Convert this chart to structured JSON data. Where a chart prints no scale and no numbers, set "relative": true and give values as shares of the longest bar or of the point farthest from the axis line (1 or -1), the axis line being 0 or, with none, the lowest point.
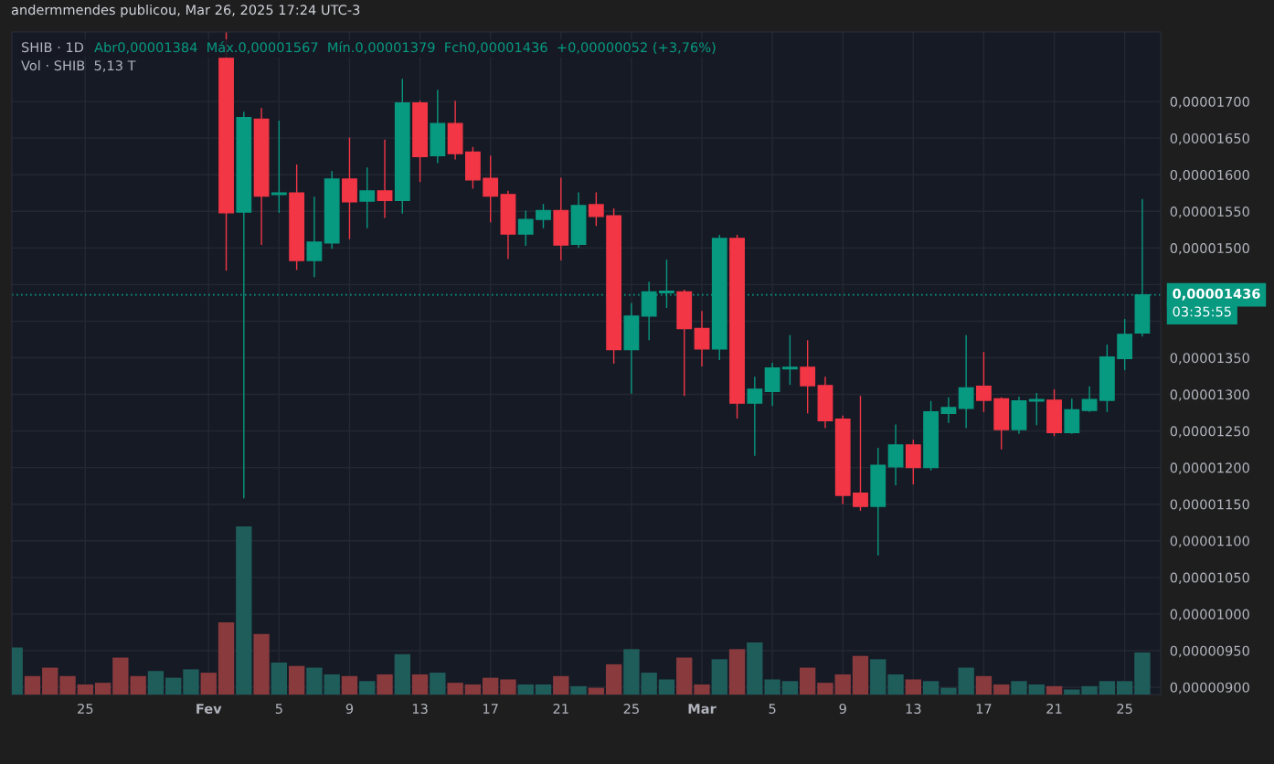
{
  "chart_data": [
    {
      "type": "candlestick",
      "title": "SHIB · 1D",
      "annotations": [
        "andermmendes publicou, Mar 26, 2025 17:24 UTC-3",
        "Abr0,00001384  Máx.0,00001567  Mín.0,00001379  Fch0,00001436  +0,00000052 (+3,76%)",
        "03:35:55"
      ],
      "x": [
        "2025-02-02",
        "2025-02-03",
        "2025-02-04",
        "2025-02-05",
        "2025-02-06",
        "2025-02-07",
        "2025-02-08",
        "2025-02-09",
        "2025-02-10",
        "2025-02-11",
        "2025-02-12",
        "2025-02-13",
        "2025-02-14",
        "2025-02-15",
        "2025-02-16",
        "2025-02-17",
        "2025-02-18",
        "2025-02-19",
        "2025-02-20",
        "2025-02-21",
        "2025-02-22",
        "2025-02-23",
        "2025-02-24",
        "2025-02-25",
        "2025-02-26",
        "2025-02-27",
        "2025-02-28",
        "2025-03-01",
        "2025-03-02",
        "2025-03-03",
        "2025-03-04",
        "2025-03-05",
        "2025-03-06",
        "2025-03-07",
        "2025-03-08",
        "2025-03-09",
        "2025-03-10",
        "2025-03-11",
        "2025-03-12",
        "2025-03-13",
        "2025-03-14",
        "2025-03-15",
        "2025-03-16",
        "2025-03-17",
        "2025-03-18",
        "2025-03-19",
        "2025-03-20",
        "2025-03-21",
        "2025-03-22",
        "2025-03-23",
        "2025-03-24",
        "2025-03-25",
        "2025-03-26"
      ],
      "ohlc": [
        [
          1.759e-05,
          1.795e-05,
          1.469e-05,
          1.548e-05
        ],
        [
          1.549e-05,
          1.686e-05,
          1.158e-05,
          1.678e-05
        ],
        [
          1.676e-05,
          1.691e-05,
          1.504e-05,
          1.571e-05
        ],
        [
          1.573e-05,
          1.674e-05,
          1.548e-05,
          1.575e-05
        ],
        [
          1.575e-05,
          1.614e-05,
          1.47e-05,
          1.483e-05
        ],
        [
          1.483e-05,
          1.57e-05,
          1.46e-05,
          1.508e-05
        ],
        [
          1.507e-05,
          1.605e-05,
          1.499e-05,
          1.594e-05
        ],
        [
          1.594e-05,
          1.651e-05,
          1.512e-05,
          1.563e-05
        ],
        [
          1.564e-05,
          1.61e-05,
          1.527e-05,
          1.578e-05
        ],
        [
          1.578e-05,
          1.648e-05,
          1.541e-05,
          1.565e-05
        ],
        [
          1.565e-05,
          1.731e-05,
          1.547e-05,
          1.698e-05
        ],
        [
          1.698e-05,
          1.701e-05,
          1.59e-05,
          1.625e-05
        ],
        [
          1.626e-05,
          1.716e-05,
          1.616e-05,
          1.67e-05
        ],
        [
          1.67e-05,
          1.701e-05,
          1.621e-05,
          1.629e-05
        ],
        [
          1.631e-05,
          1.638e-05,
          1.581e-05,
          1.593e-05
        ],
        [
          1.595e-05,
          1.626e-05,
          1.535e-05,
          1.571e-05
        ],
        [
          1.573e-05,
          1.578e-05,
          1.485e-05,
          1.519e-05
        ],
        [
          1.519e-05,
          1.551e-05,
          1.503e-05,
          1.539e-05
        ],
        [
          1.539e-05,
          1.56e-05,
          1.527e-05,
          1.551e-05
        ],
        [
          1.551e-05,
          1.596e-05,
          1.483e-05,
          1.504e-05
        ],
        [
          1.505e-05,
          1.576e-05,
          1.5e-05,
          1.558e-05
        ],
        [
          1.559e-05,
          1.576e-05,
          1.53e-05,
          1.543e-05
        ],
        [
          1.544e-05,
          1.554e-05,
          1.342e-05,
          1.361e-05
        ],
        [
          1.361e-05,
          1.425e-05,
          1.301e-05,
          1.407e-05
        ],
        [
          1.407e-05,
          1.454e-05,
          1.374e-05,
          1.44e-05
        ],
        [
          1.439e-05,
          1.484e-05,
          1.418e-05,
          1.441e-05
        ],
        [
          1.44e-05,
          1.443e-05,
          1.298e-05,
          1.39e-05
        ],
        [
          1.39e-05,
          1.414e-05,
          1.338e-05,
          1.362e-05
        ],
        [
          1.362e-05,
          1.518e-05,
          1.347e-05,
          1.513e-05
        ],
        [
          1.513e-05,
          1.518e-05,
          1.267e-05,
          1.288e-05
        ],
        [
          1.288e-05,
          1.324e-05,
          1.216e-05,
          1.307e-05
        ],
        [
          1.304e-05,
          1.343e-05,
          1.284e-05,
          1.336e-05
        ],
        [
          1.335e-05,
          1.381e-05,
          1.313e-05,
          1.337e-05
        ],
        [
          1.337e-05,
          1.374e-05,
          1.274e-05,
          1.312e-05
        ],
        [
          1.312e-05,
          1.324e-05,
          1.254e-05,
          1.264e-05
        ],
        [
          1.266e-05,
          1.271e-05,
          1.15e-05,
          1.162e-05
        ],
        [
          1.165e-05,
          1.298e-05,
          1.141e-05,
          1.147e-05
        ],
        [
          1.147e-05,
          1.227e-05,
          1.08e-05,
          1.203e-05
        ],
        [
          1.201e-05,
          1.259e-05,
          1.176e-05,
          1.231e-05
        ],
        [
          1.231e-05,
          1.238e-05,
          1.177e-05,
          1.2e-05
        ],
        [
          1.2e-05,
          1.291e-05,
          1.196e-05,
          1.276e-05
        ],
        [
          1.274e-05,
          1.296e-05,
          1.261e-05,
          1.282e-05
        ],
        [
          1.281e-05,
          1.381e-05,
          1.254e-05,
          1.309e-05
        ],
        [
          1.311e-05,
          1.358e-05,
          1.276e-05,
          1.292e-05
        ],
        [
          1.294e-05,
          1.296e-05,
          1.225e-05,
          1.252e-05
        ],
        [
          1.252e-05,
          1.297e-05,
          1.246e-05,
          1.291e-05
        ],
        [
          1.291e-05,
          1.302e-05,
          1.258e-05,
          1.293e-05
        ],
        [
          1.292e-05,
          1.307e-05,
          1.243e-05,
          1.248e-05
        ],
        [
          1.248e-05,
          1.294e-05,
          1.246e-05,
          1.279e-05
        ],
        [
          1.278e-05,
          1.311e-05,
          1.276e-05,
          1.293e-05
        ],
        [
          1.292e-05,
          1.368e-05,
          1.276e-05,
          1.351e-05
        ],
        [
          1.349e-05,
          1.403e-05,
          1.333e-05,
          1.382e-05
        ],
        [
          1.384e-05,
          1.567e-05,
          1.379e-05,
          1.436e-05
        ]
      ],
      "colors": [
        "#f23645",
        "#089981",
        "#f23645",
        "#089981",
        "#f23645",
        "#089981",
        "#089981",
        "#f23645",
        "#089981",
        "#f23645",
        "#089981",
        "#f23645",
        "#089981",
        "#f23645",
        "#f23645",
        "#f23645",
        "#f23645",
        "#089981",
        "#089981",
        "#f23645",
        "#089981",
        "#f23645",
        "#f23645",
        "#089981",
        "#089981",
        "#089981",
        "#f23645",
        "#f23645",
        "#089981",
        "#f23645",
        "#089981",
        "#089981",
        "#089981",
        "#f23645",
        "#f23645",
        "#f23645",
        "#f23645",
        "#089981",
        "#089981",
        "#f23645",
        "#089981",
        "#089981",
        "#089981",
        "#f23645",
        "#f23645",
        "#089981",
        "#089981",
        "#f23645",
        "#089981",
        "#089981",
        "#089981",
        "#089981",
        "#089981"
      ],
      "xlim": [
        "2025-01-20T20:00",
        "2025-03-27T01:00"
      ],
      "xticks": [
        {
          "value": "2025-01-25",
          "label": "25"
        },
        {
          "value": "2025-02-01",
          "label": "Fev"
        },
        {
          "value": "2025-02-05",
          "label": "5"
        },
        {
          "value": "2025-02-09",
          "label": "9"
        },
        {
          "value": "2025-02-13",
          "label": "13"
        },
        {
          "value": "2025-02-17",
          "label": "17"
        },
        {
          "value": "2025-02-21",
          "label": "21"
        },
        {
          "value": "2025-02-25",
          "label": "25"
        },
        {
          "value": "2025-03-01",
          "label": "Mar"
        },
        {
          "value": "2025-03-05",
          "label": "5"
        },
        {
          "value": "2025-03-09",
          "label": "9"
        },
        {
          "value": "2025-03-13",
          "label": "13"
        },
        {
          "value": "2025-03-17",
          "label": "17"
        },
        {
          "value": "2025-03-21",
          "label": "21"
        },
        {
          "value": "2025-03-25",
          "label": "25"
        }
      ],
      "ylim": [
        8.9e-06,
        1.795e-05
      ],
      "yticks": [
        {
          "value": 9e-06,
          "label": "0,00000900"
        },
        {
          "value": 9.5e-06,
          "label": "0,00000950"
        },
        {
          "value": 1e-05,
          "label": "0,00001000"
        },
        {
          "value": 1.05e-05,
          "label": "0,00001050"
        },
        {
          "value": 1.1e-05,
          "label": "0,00001100"
        },
        {
          "value": 1.15e-05,
          "label": "0,00001150"
        },
        {
          "value": 1.2e-05,
          "label": "0,00001200"
        },
        {
          "value": 1.25e-05,
          "label": "0,00001250"
        },
        {
          "value": 1.3e-05,
          "label": "0,00001300"
        },
        {
          "value": 1.35e-05,
          "label": "0,00001350"
        },
        {
          "value": 1.4e-05,
          "label": null
        },
        {
          "value": 1.45e-05,
          "label": null
        },
        {
          "value": 1.5e-05,
          "label": "0,00001500"
        },
        {
          "value": 1.55e-05,
          "label": "0,00001550"
        },
        {
          "value": 1.6e-05,
          "label": "0,00001600"
        },
        {
          "value": 1.65e-05,
          "label": "0,00001650"
        },
        {
          "value": 1.7e-05,
          "label": "0,00001700"
        }
      ],
      "grid": true,
      "ref_lines": [
        {
          "axis": "y",
          "value": 1.436e-05,
          "label": "0,00001436",
          "color": "#089981",
          "line_style": "dotted"
        }
      ]
    },
    {
      "type": "bar",
      "relative": true,
      "annotations": [
        "Vol · SHIB  5,13 T"
      ],
      "x": [
        "2025-01-21",
        "2025-01-22",
        "2025-01-23",
        "2025-01-24",
        "2025-01-25",
        "2025-01-26",
        "2025-01-27",
        "2025-01-28",
        "2025-01-29",
        "2025-01-30",
        "2025-01-31",
        "2025-02-01",
        "2025-02-02",
        "2025-02-03",
        "2025-02-04",
        "2025-02-05",
        "2025-02-06",
        "2025-02-07",
        "2025-02-08",
        "2025-02-09",
        "2025-02-10",
        "2025-02-11",
        "2025-02-12",
        "2025-02-13",
        "2025-02-14",
        "2025-02-15",
        "2025-02-16",
        "2025-02-17",
        "2025-02-18",
        "2025-02-19",
        "2025-02-20",
        "2025-02-21",
        "2025-02-22",
        "2025-02-23",
        "2025-02-24",
        "2025-02-25",
        "2025-02-26",
        "2025-02-27",
        "2025-02-28",
        "2025-03-01",
        "2025-03-02",
        "2025-03-03",
        "2025-03-04",
        "2025-03-05",
        "2025-03-06",
        "2025-03-07",
        "2025-03-08",
        "2025-03-09",
        "2025-03-10",
        "2025-03-11",
        "2025-03-12",
        "2025-03-13",
        "2025-03-14",
        "2025-03-15",
        "2025-03-16",
        "2025-03-17",
        "2025-03-18",
        "2025-03-19",
        "2025-03-20",
        "2025-03-21",
        "2025-03-22",
        "2025-03-23",
        "2025-03-24",
        "2025-03-25",
        "2025-03-26"
      ],
      "values": [
        0.28,
        0.11,
        0.16,
        0.11,
        0.06,
        0.07,
        0.22,
        0.11,
        0.14,
        0.1,
        0.15,
        0.13,
        0.43,
        1,
        0.36,
        0.19,
        0.17,
        0.16,
        0.12,
        0.11,
        0.08,
        0.12,
        0.24,
        0.12,
        0.13,
        0.07,
        0.06,
        0.1,
        0.09,
        0.06,
        0.06,
        0.11,
        0.05,
        0.04,
        0.18,
        0.27,
        0.13,
        0.09,
        0.22,
        0.06,
        0.21,
        0.27,
        0.31,
        0.09,
        0.08,
        0.16,
        0.07,
        0.12,
        0.23,
        0.21,
        0.12,
        0.09,
        0.08,
        0.04,
        0.16,
        0.11,
        0.06,
        0.08,
        0.06,
        0.05,
        0.03,
        0.05,
        0.08,
        0.08,
        0.25
      ],
      "colors": [
        "#1f5d5b",
        "#883a3d",
        "#883a3d",
        "#883a3d",
        "#883a3d",
        "#883a3d",
        "#883a3d",
        "#883a3d",
        "#1f5d5b",
        "#1f5d5b",
        "#1f5d5b",
        "#883a3d",
        "#883a3d",
        "#1f5d5b",
        "#883a3d",
        "#1f5d5b",
        "#883a3d",
        "#1f5d5b",
        "#1f5d5b",
        "#883a3d",
        "#1f5d5b",
        "#883a3d",
        "#1f5d5b",
        "#883a3d",
        "#1f5d5b",
        "#883a3d",
        "#883a3d",
        "#883a3d",
        "#883a3d",
        "#1f5d5b",
        "#1f5d5b",
        "#883a3d",
        "#1f5d5b",
        "#883a3d",
        "#883a3d",
        "#1f5d5b",
        "#1f5d5b",
        "#1f5d5b",
        "#883a3d",
        "#883a3d",
        "#1f5d5b",
        "#883a3d",
        "#1f5d5b",
        "#1f5d5b",
        "#1f5d5b",
        "#883a3d",
        "#883a3d",
        "#883a3d",
        "#883a3d",
        "#1f5d5b",
        "#1f5d5b",
        "#883a3d",
        "#1f5d5b",
        "#1f5d5b",
        "#1f5d5b",
        "#883a3d",
        "#883a3d",
        "#1f5d5b",
        "#1f5d5b",
        "#883a3d",
        "#1f5d5b",
        "#1f5d5b",
        "#1f5d5b",
        "#1f5d5b",
        "#1f5d5b"
      ],
      "xlim": [
        "2025-01-20T20:00",
        "2025-03-27T01:00"
      ]
    }
  ]
}
